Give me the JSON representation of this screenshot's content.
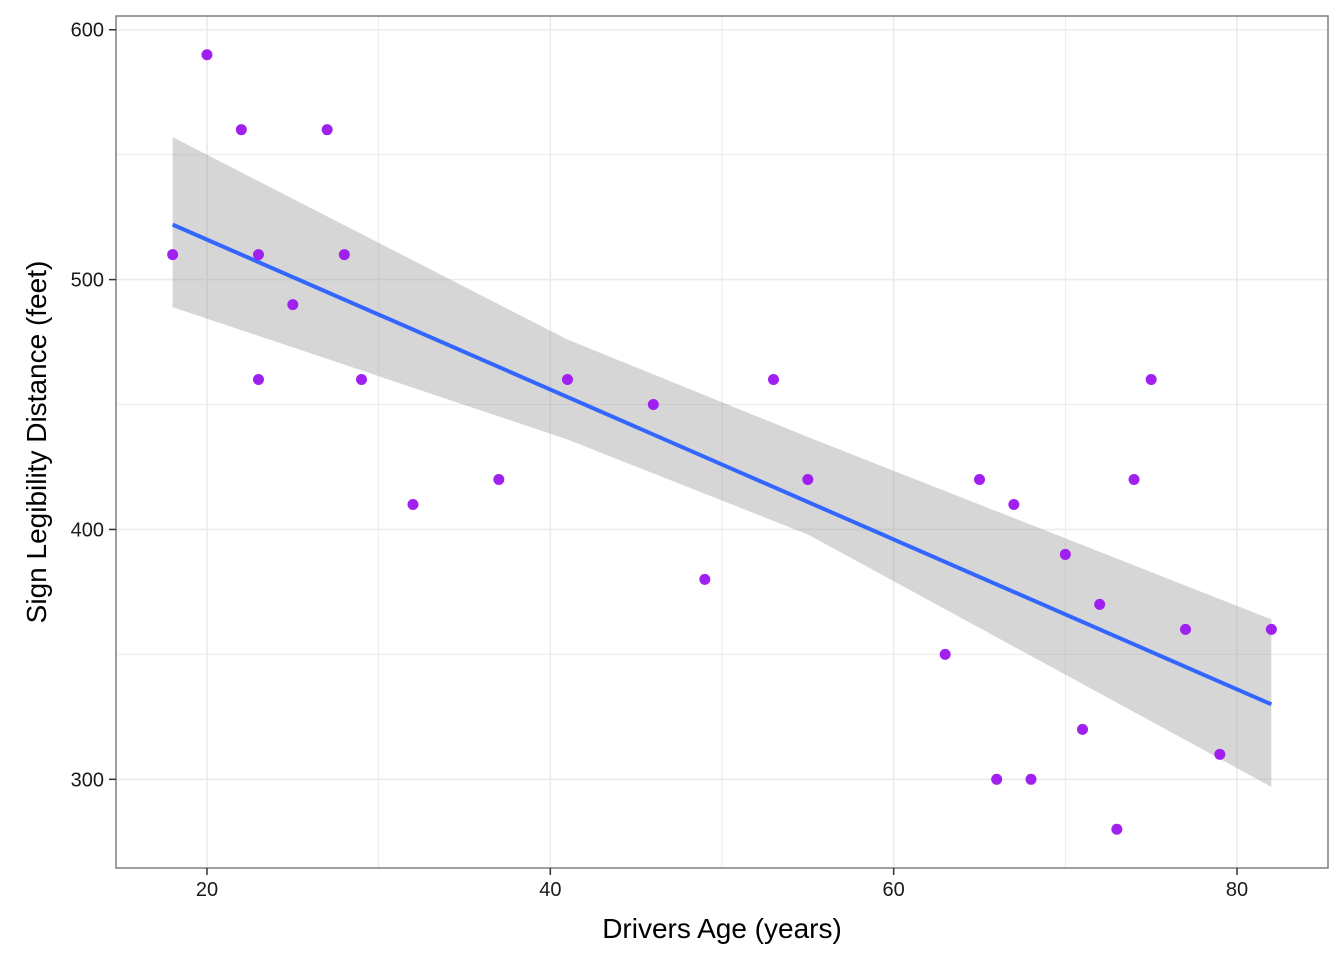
{
  "chart_data": {
    "type": "scatter",
    "xlabel": "Drivers Age (years)",
    "ylabel": "Sign Legibility Distance (feet)",
    "xlim": [
      14.7,
      85.3
    ],
    "ylim": [
      264.5,
      605.5
    ],
    "x_ticks": [
      20,
      40,
      60,
      80
    ],
    "x_tick_labels": [
      "20",
      "40",
      "60",
      "80"
    ],
    "y_ticks": [
      300,
      400,
      500,
      600
    ],
    "y_tick_labels": [
      "300",
      "400",
      "500",
      "600"
    ],
    "x_minor_ticks": [
      30,
      50,
      70
    ],
    "y_minor_ticks": [
      350,
      450,
      550
    ],
    "grid": true,
    "legend": "none",
    "colors": {
      "points": "#a020f0",
      "fit_line": "#3366ff",
      "ribbon": "#999999",
      "grid": "#ebebeb",
      "panel_border": "#7f7f7f"
    },
    "points": {
      "x": [
        18,
        20,
        22,
        23,
        23,
        25,
        27,
        28,
        29,
        32,
        37,
        41,
        46,
        49,
        53,
        55,
        63,
        65,
        66,
        67,
        68,
        70,
        71,
        72,
        73,
        74,
        75,
        77,
        79,
        82
      ],
      "y": [
        510,
        590,
        560,
        510,
        460,
        490,
        560,
        510,
        460,
        410,
        420,
        460,
        450,
        380,
        460,
        420,
        350,
        420,
        300,
        410,
        300,
        390,
        320,
        370,
        280,
        420,
        460,
        360,
        310,
        360
      ]
    },
    "fit": {
      "method": "linear",
      "x": [
        18,
        82
      ],
      "y": [
        522,
        330
      ]
    },
    "ribbon": {
      "x": [
        18,
        41,
        55,
        82
      ],
      "upper": [
        557,
        476,
        437,
        364
      ],
      "lower": [
        489,
        436,
        398,
        297
      ]
    }
  }
}
